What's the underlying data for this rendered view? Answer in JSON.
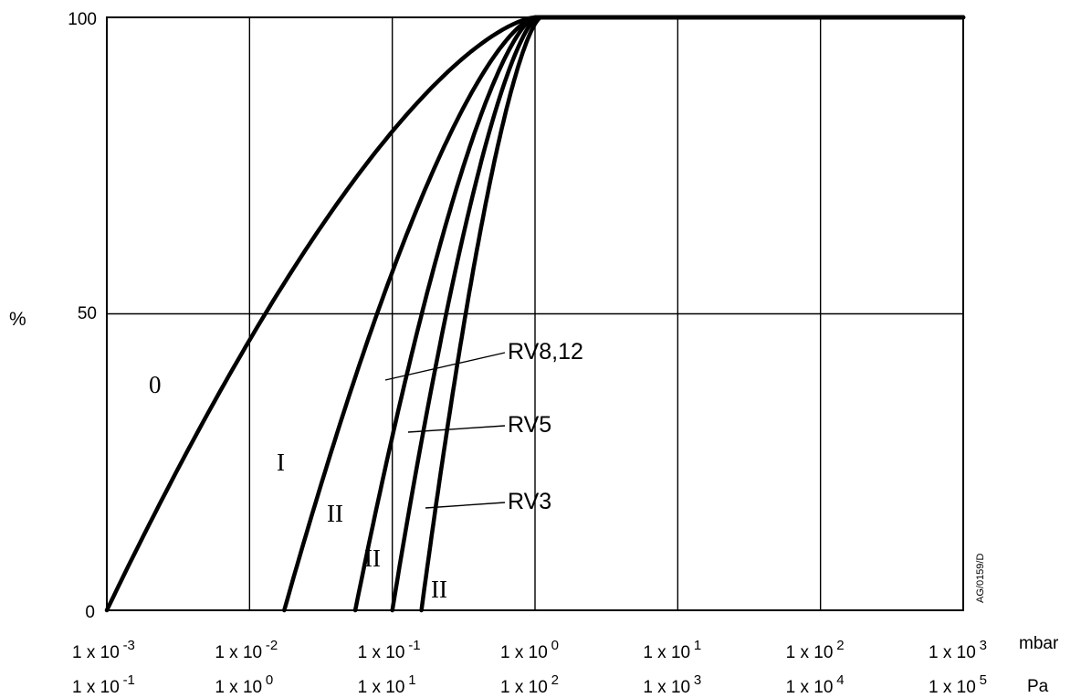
{
  "chart_data": {
    "type": "line",
    "title": "",
    "xscale": "log",
    "xlim": [
      0.001,
      1000
    ],
    "ylim": [
      0,
      100
    ],
    "ylabel": "%",
    "y_ticks": [
      "0",
      "50",
      "100"
    ],
    "grid": true,
    "x_ticks_mbar": [
      {
        "mant": "1 x 10",
        "exp": "-3"
      },
      {
        "mant": "1 x 10",
        "exp": "-2"
      },
      {
        "mant": "1 x 10",
        "exp": "-1"
      },
      {
        "mant": "1 x 10",
        "exp": "0"
      },
      {
        "mant": "1 x 10",
        "exp": "1"
      },
      {
        "mant": "1 x 10",
        "exp": "2"
      },
      {
        "mant": "1 x 10",
        "exp": "3"
      }
    ],
    "x_ticks_pa": [
      {
        "mant": "1 x 10",
        "exp": "-1"
      },
      {
        "mant": "1 x 10",
        "exp": "0"
      },
      {
        "mant": "1 x 10",
        "exp": "1"
      },
      {
        "mant": "1 x 10",
        "exp": "2"
      },
      {
        "mant": "1 x 10",
        "exp": "3"
      },
      {
        "mant": "1 x 10",
        "exp": "4"
      },
      {
        "mant": "1 x 10",
        "exp": "5"
      }
    ],
    "unit_mbar": "mbar",
    "unit_pa": "Pa",
    "series": [
      {
        "label": "0",
        "x0": 0.001,
        "x100": 1.0,
        "k": 1.5
      },
      {
        "label": "I",
        "x0": 0.0175,
        "x100": 1.0,
        "k": 1.5
      },
      {
        "label": "II",
        "x0": 0.055,
        "x100": 1.0,
        "k": 1.5
      },
      {
        "label": "II",
        "x0": 0.1,
        "x100": 1.05,
        "k": 1.5
      },
      {
        "label": "II",
        "x0": 0.16,
        "x100": 1.1,
        "k": 1.5
      }
    ],
    "annotations": [
      {
        "text": "RV8,12"
      },
      {
        "text": "RV5"
      },
      {
        "text": "RV3"
      }
    ],
    "side_code": "AG/0159/D"
  }
}
